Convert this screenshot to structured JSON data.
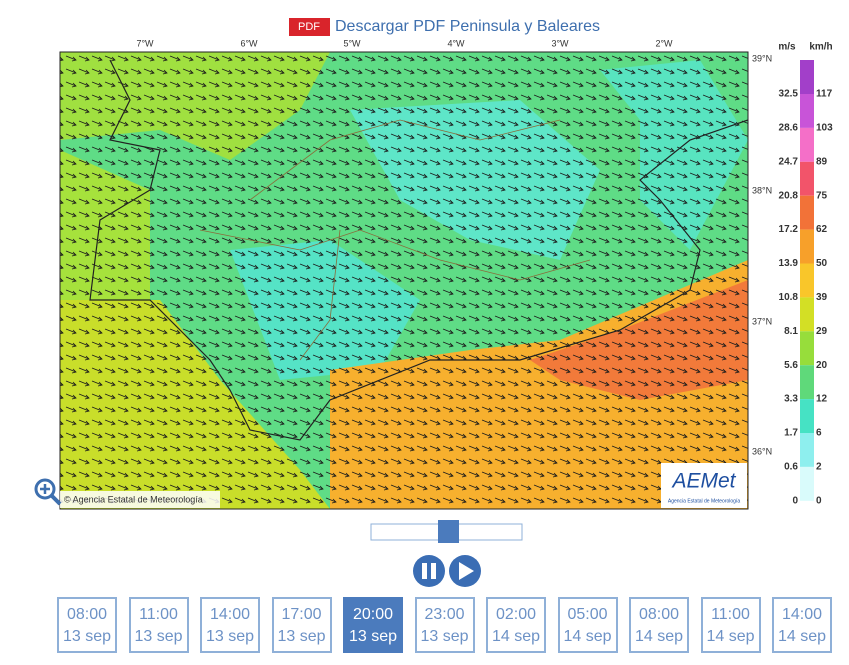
{
  "header": {
    "pdf_badge": "PDF",
    "title": "Descargar PDF Peninsula y Baleares"
  },
  "map": {
    "longitude_labels": [
      "7°W",
      "6°W",
      "5°W",
      "4°W",
      "3°W",
      "2°W"
    ],
    "latitude_labels": [
      "39°N",
      "38°N",
      "37°N",
      "36°N"
    ],
    "copyright": "© Agencia Estatal de Meteorología",
    "logo": {
      "name": "AEMet",
      "subtitle": "Agencia Estatal de Meteorología"
    }
  },
  "legend": {
    "units": [
      "m/s",
      "km/h"
    ],
    "items": [
      {
        "ms": "32.5",
        "kmh": "117",
        "color": "#a23fc9"
      },
      {
        "ms": "28.6",
        "kmh": "103",
        "color": "#c854d8"
      },
      {
        "ms": "24.7",
        "kmh": "89",
        "color": "#f46fc8"
      },
      {
        "ms": "20.8",
        "kmh": "75",
        "color": "#f2546a"
      },
      {
        "ms": "17.2",
        "kmh": "62",
        "color": "#f27238"
      },
      {
        "ms": "13.9",
        "kmh": "50",
        "color": "#f7a02a"
      },
      {
        "ms": "10.8",
        "kmh": "39",
        "color": "#f9c62a"
      },
      {
        "ms": "8.1",
        "kmh": "29",
        "color": "#d3df25"
      },
      {
        "ms": "5.6",
        "kmh": "20",
        "color": "#97dd3b"
      },
      {
        "ms": "3.3",
        "kmh": "12",
        "color": "#5fd97a"
      },
      {
        "ms": "1.7",
        "kmh": "6",
        "color": "#46e2c4"
      },
      {
        "ms": "0.6",
        "kmh": "2",
        "color": "#8eefee"
      },
      {
        "ms": "0",
        "kmh": "0",
        "color": "#d9fbfb"
      }
    ]
  },
  "timeline": {
    "selected": 4,
    "times": [
      {
        "time": "08:00",
        "date": "13 sep"
      },
      {
        "time": "11:00",
        "date": "13 sep"
      },
      {
        "time": "14:00",
        "date": "13 sep"
      },
      {
        "time": "17:00",
        "date": "13 sep"
      },
      {
        "time": "20:00",
        "date": "13 sep"
      },
      {
        "time": "23:00",
        "date": "13 sep"
      },
      {
        "time": "02:00",
        "date": "14 sep"
      },
      {
        "time": "05:00",
        "date": "14 sep"
      },
      {
        "time": "08:00",
        "date": "14 sep"
      },
      {
        "time": "11:00",
        "date": "14 sep"
      },
      {
        "time": "14:00",
        "date": "14 sep"
      }
    ]
  }
}
